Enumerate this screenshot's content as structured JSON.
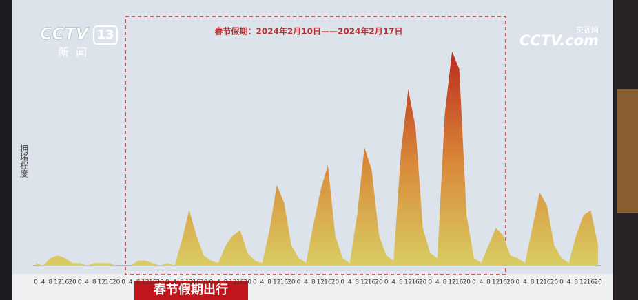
{
  "chart_data": {
    "type": "area",
    "title": "春节假期：2024年2月10日——2024年2月17日",
    "y_label": "拥堵程度",
    "categories": [
      "0",
      "4",
      "8",
      "12",
      "16",
      "20",
      "0",
      "4",
      "8",
      "12",
      "16",
      "20",
      "0",
      "4",
      "8",
      "12",
      "16",
      "20",
      "0",
      "4",
      "8",
      "12",
      "16",
      "20",
      "0",
      "4",
      "8",
      "12",
      "16",
      "20",
      "0",
      "4",
      "8",
      "12",
      "16",
      "20",
      "0",
      "4",
      "8",
      "12",
      "16",
      "20",
      "0",
      "4",
      "8",
      "12",
      "16",
      "20",
      "0",
      "4",
      "8",
      "12",
      "16",
      "20",
      "0",
      "4",
      "8",
      "12",
      "16",
      "20",
      "0",
      "4",
      "8",
      "12",
      "16",
      "20",
      "0",
      "4",
      "8",
      "12",
      "16",
      "20",
      "0",
      "4",
      "8",
      "12",
      "16",
      "20"
    ],
    "values": [
      1,
      0,
      3,
      4,
      3,
      1,
      1,
      0,
      1,
      1,
      1,
      0,
      0,
      0,
      2,
      2,
      1,
      0,
      1,
      0,
      10,
      22,
      12,
      4,
      2,
      1,
      8,
      12,
      14,
      5,
      2,
      1,
      14,
      32,
      25,
      8,
      3,
      1,
      16,
      30,
      40,
      12,
      3,
      1,
      20,
      47,
      38,
      12,
      4,
      2,
      45,
      70,
      55,
      15,
      5,
      3,
      60,
      85,
      78,
      20,
      3,
      1,
      8,
      15,
      12,
      4,
      3,
      1,
      15,
      29,
      24,
      8,
      3,
      1,
      12,
      20,
      22,
      8
    ],
    "ylim": [
      0,
      100
    ],
    "color_low": "#d9cc62",
    "color_high": "#b8221a"
  },
  "overlay": {
    "logo_brand": "CCTV",
    "logo_channel": "13",
    "logo_name": "新闻",
    "watermark_brand": "CCTV.com",
    "watermark_name": "央视网",
    "caption": "春节假期出行"
  }
}
